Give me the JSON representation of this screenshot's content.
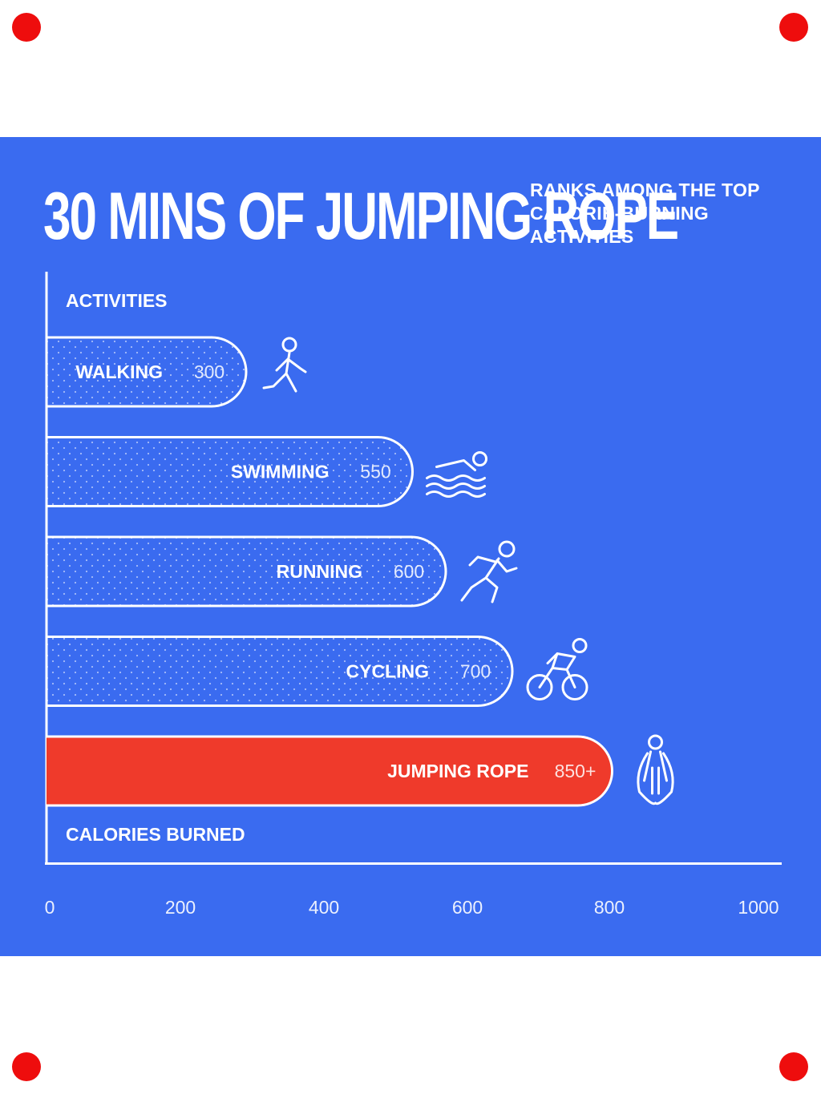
{
  "header": {
    "title": "30 MINS OF JUMPING ROPE",
    "subtitle_lines": [
      "RANKS AMONG THE TOP",
      "CALORIE-BURNING",
      "ACTIVITIES"
    ]
  },
  "colors": {
    "background": "#3a6bf0",
    "bar_outline": "#ffffff",
    "highlight": "#ef3a2b",
    "corner_dots": "#ee0d0d"
  },
  "chart_data": {
    "type": "bar",
    "orientation": "horizontal",
    "ylabel": "ACTIVITIES",
    "xlabel": "CALORIES BURNED",
    "xlim": [
      0,
      1000
    ],
    "x_ticks": [
      "0",
      "200",
      "400",
      "600",
      "800",
      "1000"
    ],
    "grid": false,
    "categories": [
      "WALKING",
      "SWIMMING",
      "RUNNING",
      "CYCLING",
      "JUMPING ROPE"
    ],
    "values": [
      300,
      550,
      600,
      700,
      850
    ],
    "value_labels": [
      "300",
      "550",
      "600",
      "700",
      "850+"
    ],
    "icons": [
      "walking-person-icon",
      "swimmer-icon",
      "runner-icon",
      "cyclist-icon",
      "jump-rope-icon"
    ],
    "highlight": "JUMPING ROPE"
  }
}
